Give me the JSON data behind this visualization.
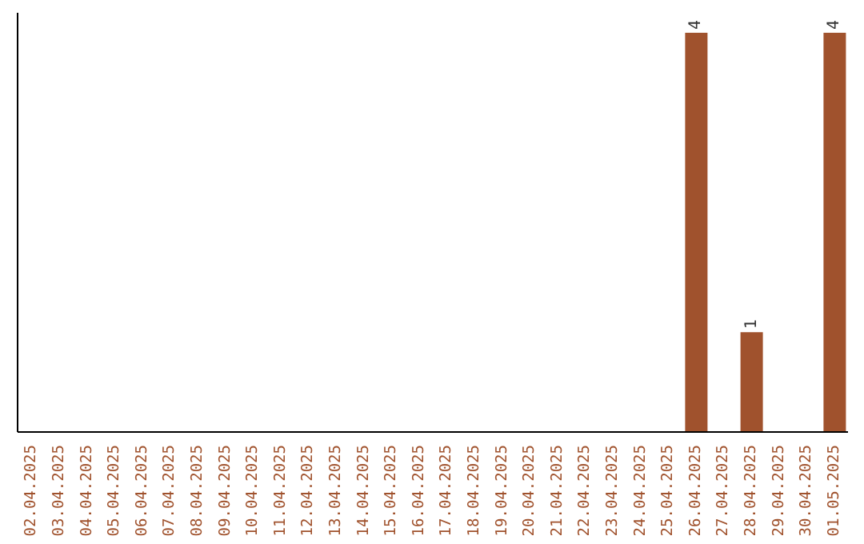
{
  "chart_data": {
    "type": "bar",
    "categories": [
      "02.04.2025",
      "03.04.2025",
      "04.04.2025",
      "05.04.2025",
      "06.04.2025",
      "07.04.2025",
      "08.04.2025",
      "09.04.2025",
      "10.04.2025",
      "11.04.2025",
      "12.04.2025",
      "13.04.2025",
      "14.04.2025",
      "15.04.2025",
      "16.04.2025",
      "17.04.2025",
      "18.04.2025",
      "19.04.2025",
      "20.04.2025",
      "21.04.2025",
      "22.04.2025",
      "23.04.2025",
      "24.04.2025",
      "25.04.2025",
      "26.04.2025",
      "27.04.2025",
      "28.04.2025",
      "29.04.2025",
      "30.04.2025",
      "01.05.2025"
    ],
    "values": [
      null,
      null,
      null,
      null,
      null,
      null,
      null,
      null,
      null,
      null,
      null,
      null,
      null,
      null,
      null,
      null,
      null,
      null,
      null,
      null,
      null,
      null,
      null,
      null,
      4,
      null,
      1,
      null,
      null,
      4
    ],
    "data_labels": true,
    "color": "#a0522d",
    "grid": false,
    "legend": false
  }
}
